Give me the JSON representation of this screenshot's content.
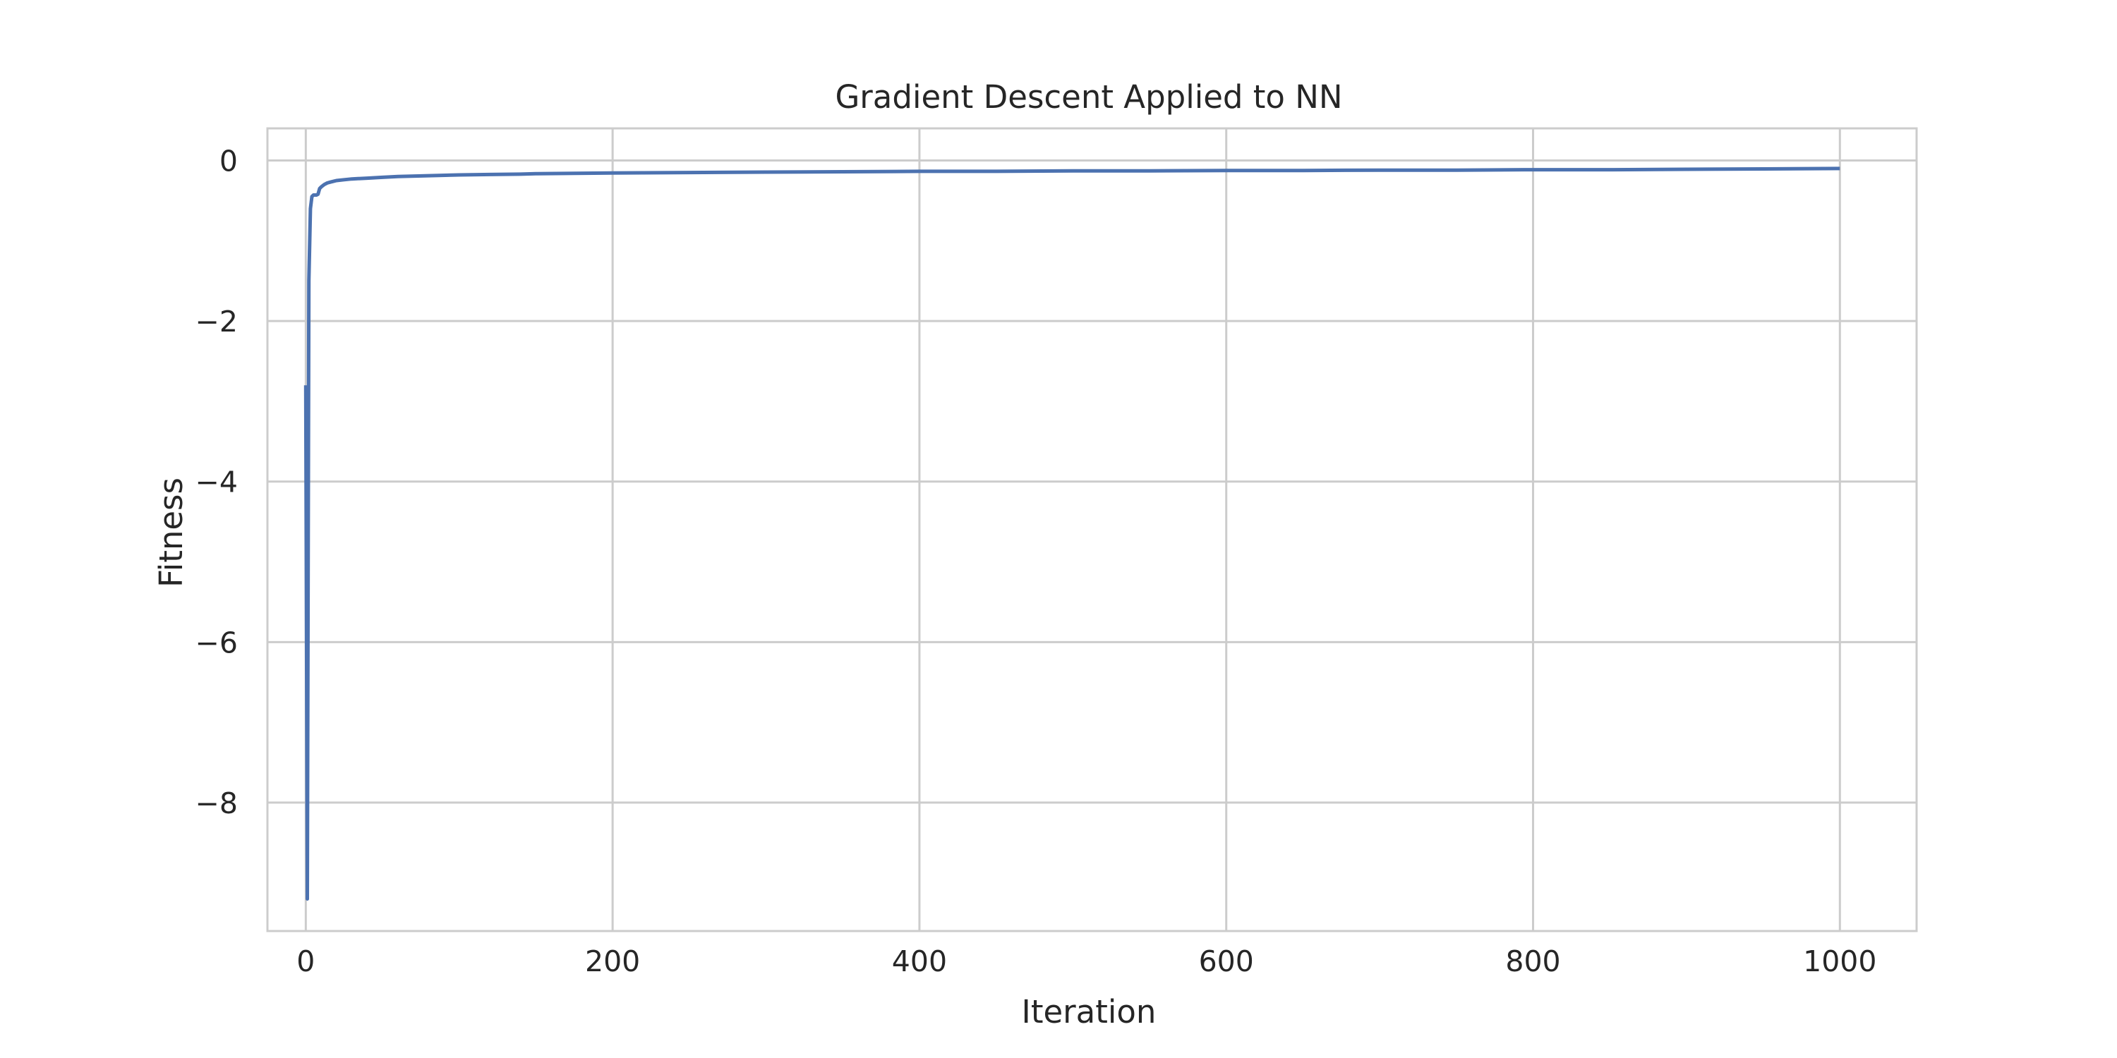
{
  "chart_data": {
    "type": "line",
    "title": "Gradient Descent Applied to NN",
    "xlabel": "Iteration",
    "ylabel": "Fitness",
    "xlim": [
      -25,
      1050
    ],
    "ylim": [
      -9.6,
      0.4
    ],
    "xticks": [
      0,
      200,
      400,
      600,
      800,
      1000
    ],
    "yticks": [
      0,
      -2,
      -4,
      -6,
      -8
    ],
    "xtick_labels": [
      "0",
      "200",
      "400",
      "600",
      "800",
      "1000"
    ],
    "ytick_labels": [
      "0",
      "−2",
      "−4",
      "−6",
      "−8"
    ],
    "grid": true,
    "series": [
      {
        "color": "#4c72b0",
        "x": [
          0,
          1,
          2,
          3,
          4,
          5,
          6,
          7,
          8,
          9,
          10,
          12,
          14,
          16,
          18,
          20,
          25,
          30,
          40,
          50,
          60,
          80,
          100,
          120,
          140,
          150,
          175,
          200,
          250,
          300,
          350,
          400,
          450,
          500,
          550,
          600,
          650,
          700,
          750,
          800,
          850,
          900,
          950,
          1000
        ],
        "y": [
          -2.8,
          -9.2,
          -1.5,
          -0.6,
          -0.45,
          -0.43,
          -0.43,
          -0.43,
          -0.42,
          -0.35,
          -0.33,
          -0.3,
          -0.28,
          -0.27,
          -0.26,
          -0.25,
          -0.24,
          -0.23,
          -0.22,
          -0.21,
          -0.2,
          -0.19,
          -0.18,
          -0.175,
          -0.17,
          -0.165,
          -0.16,
          -0.155,
          -0.15,
          -0.145,
          -0.14,
          -0.135,
          -0.135,
          -0.13,
          -0.13,
          -0.125,
          -0.125,
          -0.12,
          -0.12,
          -0.115,
          -0.115,
          -0.11,
          -0.105,
          -0.1
        ]
      }
    ]
  }
}
